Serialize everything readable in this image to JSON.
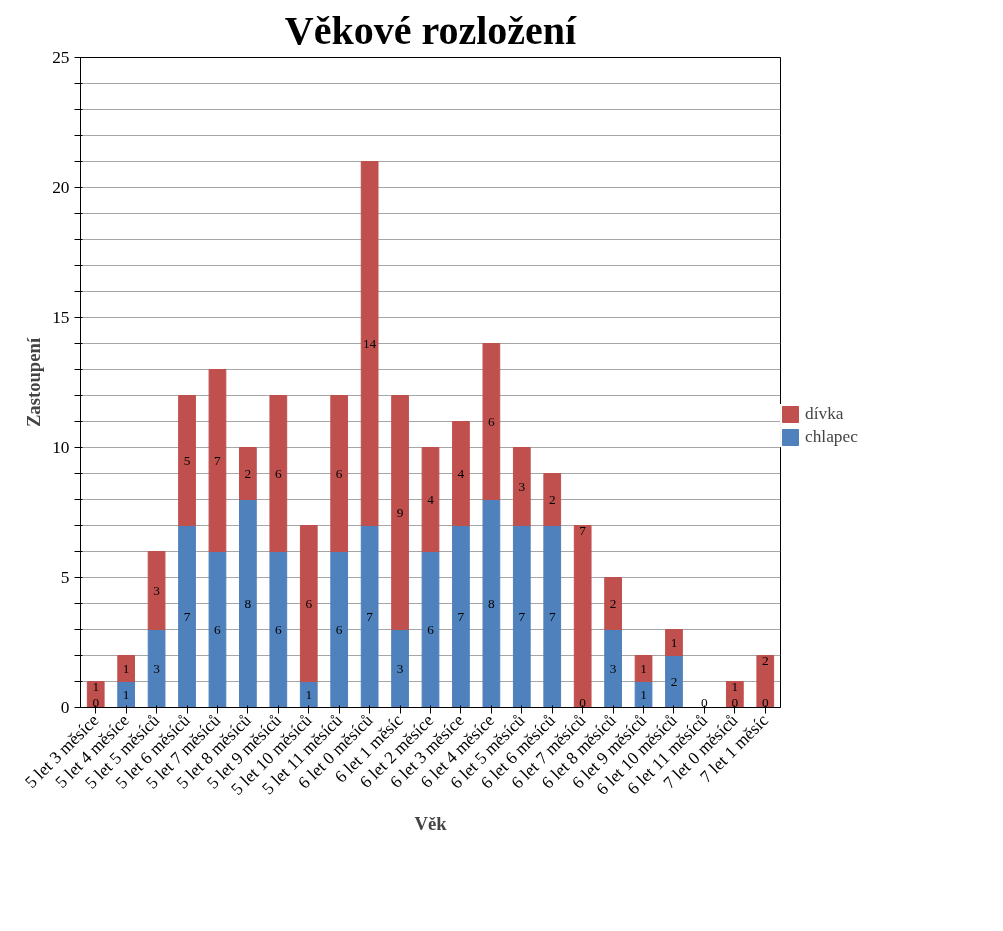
{
  "chart_data": {
    "type": "bar",
    "stacked": true,
    "title": "Věkové rozložení",
    "xlabel": "Věk",
    "ylabel": "Zastoupení",
    "categories": [
      "5 let 3 měsíce",
      "5 let 4 měsíce",
      "5 let 5 měsíců",
      "5 let 6 měsíců",
      "5 let 7 měsíců",
      "5 let 8 měsíců",
      "5 let 9 měsíců",
      "5 let 10 měsíců",
      "5 let 11 měsíců",
      "6 let 0 měsíců",
      "6 let 1 měsíc",
      "6 let 2 měsíce",
      "6 let 3 měsíce",
      "6 let 4 měsíce",
      "6 let 5 měsíců",
      "6 let 6 měsíců",
      "6 let 7 měsíců",
      "6 let 8 měsíců",
      "6 let 9 měsíců",
      "6 let 10 měsíců",
      "6 let 11 měsíců",
      "7 let 0 měsíců",
      "7 let 1 měsíc"
    ],
    "series": [
      {
        "name": "chlapec",
        "color": "#4f81bd",
        "values": [
          0,
          1,
          3,
          7,
          6,
          8,
          6,
          1,
          6,
          7,
          3,
          6,
          7,
          8,
          7,
          7,
          0,
          3,
          1,
          2,
          0,
          0,
          0
        ],
        "value_labels": [
          "0",
          "1",
          "3",
          "7",
          "6",
          "8",
          "6",
          "1",
          "6",
          "7",
          "3",
          "6",
          "7",
          "8",
          "7",
          "7",
          "0",
          "3",
          "1",
          "2",
          "0",
          "0",
          "0"
        ]
      },
      {
        "name": "dívka",
        "color": "#c0504d",
        "values": [
          1,
          1,
          3,
          5,
          7,
          2,
          6,
          6,
          6,
          14,
          9,
          4,
          4,
          6,
          3,
          2,
          7,
          2,
          1,
          1,
          0,
          1,
          2
        ],
        "value_labels": [
          "1",
          "1",
          "3",
          "5",
          "7",
          "2",
          "6",
          "6",
          "6",
          "14",
          "9",
          "4",
          "4",
          "6",
          "3",
          "2",
          "7",
          "2",
          "1",
          "1",
          null,
          "1",
          "2"
        ]
      }
    ],
    "ylim": [
      0,
      25
    ],
    "yticks": [
      0,
      {
        "value": 1,
        "label": null
      },
      {
        "value": 2,
        "label": null
      },
      {
        "value": 3,
        "label": null
      },
      {
        "value": 4,
        "label": null
      },
      5,
      {
        "value": 6,
        "label": null
      },
      {
        "value": 7,
        "label": null
      },
      {
        "value": 8,
        "label": null
      },
      {
        "value": 9,
        "label": null
      },
      10,
      {
        "value": 11,
        "label": null
      },
      {
        "value": 12,
        "label": null
      },
      {
        "value": 13,
        "label": null
      },
      {
        "value": 14,
        "label": null
      },
      15,
      {
        "value": 16,
        "label": null
      },
      {
        "value": 17,
        "label": null
      },
      {
        "value": 18,
        "label": null
      },
      {
        "value": 19,
        "label": null
      },
      20,
      {
        "value": 21,
        "label": null
      },
      {
        "value": 22,
        "label": null
      },
      {
        "value": 23,
        "label": null
      },
      {
        "value": 24,
        "label": null
      },
      25
    ],
    "grid": "y",
    "legend": "right"
  }
}
